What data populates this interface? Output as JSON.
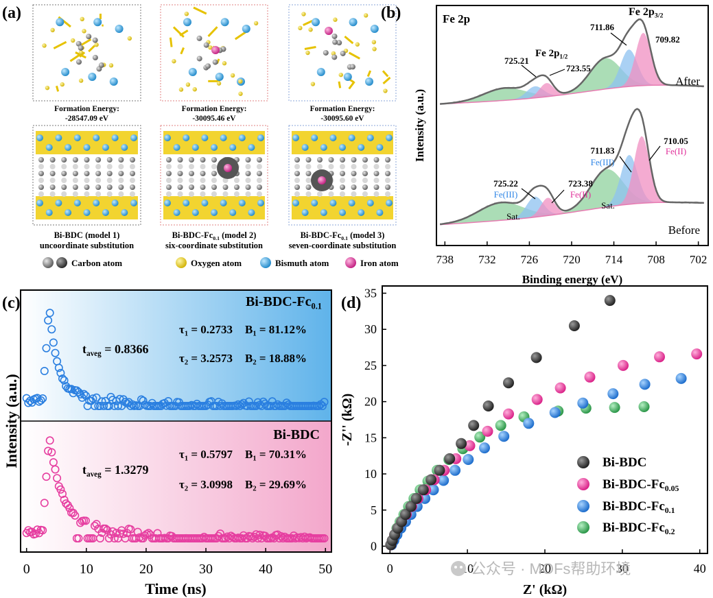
{
  "panel_a": {
    "label": "(a)",
    "models": [
      {
        "energy_title": "Formation Energy:",
        "energy_value": "-28547.09 eV",
        "name": "Bi-BDC (model 1)",
        "desc": "uncoordinate substitution",
        "frame_color": "#777777"
      },
      {
        "energy_title": "Formation Energy:",
        "energy_value": "-30095.46 eV",
        "name_main": "Bi-BDC-Fc",
        "name_sub": "0.1",
        "name_rest": " (model 2)",
        "desc": "six-coordinate substitution",
        "frame_color": "#e08080"
      },
      {
        "energy_title": "Formation Energy:",
        "energy_value": "-30095.60 eV",
        "name_main": "Bi-BDC-Fc",
        "name_sub": "0.1",
        "name_rest": " (model 3)",
        "desc": "seven-coordinate substitution",
        "frame_color": "#8aa6d8"
      }
    ],
    "legend": [
      {
        "label": "Carbon atom",
        "color": "#8a8a8a"
      },
      {
        "label": "Oxygen atom",
        "color": "#f0d21a"
      },
      {
        "label": "Bismuth atom",
        "color": "#3aa6e0"
      },
      {
        "label": "Iron atom",
        "color": "#e0309a"
      }
    ]
  },
  "panel_b": {
    "label": "(b)",
    "corner_label": "Fe 2p",
    "ylabel": "Intensity (a.u.)",
    "xlabel": "Binding energy (eV)",
    "ticks": [
      "738",
      "732",
      "726",
      "720",
      "714",
      "708",
      "702"
    ],
    "after": {
      "label": "After",
      "peaks": [
        "725.21",
        "723.55",
        "711.86",
        "709.82"
      ],
      "fe2p12_main": "Fe 2p",
      "fe2p12_sub": "1/2",
      "fe2p32_main": "Fe 2p",
      "fe2p32_sub": "3/2"
    },
    "before": {
      "label": "Before",
      "peaks": [
        "725.22",
        "723.38",
        "711.83",
        "710.05"
      ],
      "state_labels": [
        "Fe(III)",
        "Fe(II)",
        "Fe(III)",
        "Fe(II)"
      ],
      "sat_labels": [
        "Sat.",
        "Sat."
      ]
    }
  },
  "panel_c": {
    "label": "(c)",
    "ylabel": "Intensity (a.u.)",
    "xlabel": "Time (ns)",
    "top": {
      "title_main": "Bi-BDC-Fc",
      "title_sub": "0.1",
      "t_main": "t",
      "t_sub": "aveg",
      "t_value": " = 0.8366",
      "tau1": " = 0.2733",
      "tau2": " = 3.2573",
      "b1": " = 81.12%",
      "b2": " = 18.88%"
    },
    "bottom": {
      "title": "Bi-BDC",
      "t_main": "t",
      "t_sub": "aveg",
      "t_value": " = 1.3279",
      "tau1": " = 0.5797",
      "tau2": " = 3.0998",
      "b1": " = 70.31%",
      "b2": " = 29.69%"
    },
    "tau_symbol": "τ",
    "b_symbol": "B",
    "sub1": "1",
    "sub2": "2"
  },
  "panel_d": {
    "label": "(d)",
    "ylabel": "-Z'' (kΩ)",
    "xlabel": "Z' (kΩ)",
    "legend": [
      {
        "main": "Bi-BDC",
        "sub": "",
        "color": "#3a3a3a"
      },
      {
        "main": "Bi-BDC-Fc",
        "sub": "0.05",
        "color": "#f03c9a"
      },
      {
        "main": "Bi-BDC-Fc",
        "sub": "0.1",
        "color": "#2f86e6"
      },
      {
        "main": "Bi-BDC-Fc",
        "sub": "0.2",
        "color": "#3cb55a"
      }
    ]
  },
  "watermark": "公众号 · MOFs帮助环境",
  "chart_data": [
    {
      "type": "line",
      "title": "Fe 2p",
      "xlabel": "Binding energy (eV)",
      "ylabel": "Intensity (a.u.)",
      "xlim": [
        738,
        702
      ],
      "x_ticks": [
        738,
        732,
        726,
        720,
        714,
        708,
        702
      ],
      "series": [
        {
          "name": "After",
          "peak_positions": [
            725.21,
            723.55,
            711.86,
            709.82
          ]
        },
        {
          "name": "Before",
          "peak_positions": [
            725.22,
            723.38,
            711.83,
            710.05
          ]
        }
      ]
    },
    {
      "type": "scatter",
      "xlabel": "Time (ns)",
      "ylabel": "Intensity (a.u.)",
      "xlim": [
        -1,
        51
      ],
      "x_ticks": [
        0,
        10,
        20,
        30,
        40,
        50
      ],
      "series": [
        {
          "name": "Bi-BDC-Fc0.1",
          "t_aveg": 0.8366,
          "tau1": 0.2733,
          "tau2": 3.2573,
          "B1": 81.12,
          "B2": 18.88,
          "peak_x": 3.8
        },
        {
          "name": "Bi-BDC",
          "t_aveg": 1.3279,
          "tau1": 0.5797,
          "tau2": 3.0998,
          "B1": 70.31,
          "B2": 29.69,
          "peak_x": 3.8
        }
      ]
    },
    {
      "type": "scatter",
      "xlabel": "Z' (kΩ)",
      "ylabel": "-Z'' (kΩ)",
      "xlim": [
        -1,
        41
      ],
      "ylim": [
        -1,
        36
      ],
      "x_ticks": [
        0,
        10,
        20,
        30,
        40
      ],
      "y_ticks": [
        0,
        5,
        10,
        15,
        20,
        25,
        30,
        35
      ],
      "series": [
        {
          "name": "Bi-BDC",
          "x": [
            0.1,
            0.3,
            0.6,
            1.0,
            1.5,
            2.0,
            2.7,
            3.4,
            4.3,
            5.3,
            6.4,
            7.7,
            9.2,
            10.8,
            12.7,
            15.3,
            18.9,
            23.8,
            28.4
          ],
          "y": [
            0.2,
            0.8,
            1.6,
            2.5,
            3.4,
            4.4,
            5.5,
            6.6,
            7.8,
            9.2,
            10.5,
            12.1,
            14.2,
            16.7,
            19.4,
            22.6,
            26.1,
            30.5,
            34.0
          ]
        },
        {
          "name": "Bi-BDC-Fc0.05",
          "x": [
            0.1,
            0.3,
            0.6,
            1.0,
            1.5,
            2.1,
            2.8,
            3.6,
            4.6,
            5.7,
            7.0,
            8.5,
            10.3,
            12.6,
            15.3,
            19.0,
            22.0,
            25.8,
            30.1,
            34.8,
            39.6
          ],
          "y": [
            0.2,
            0.8,
            1.6,
            2.5,
            3.4,
            4.4,
            5.5,
            6.6,
            7.8,
            9.2,
            10.5,
            12.1,
            13.9,
            15.9,
            18.3,
            20.3,
            21.9,
            23.4,
            25.0,
            26.2,
            26.6
          ]
        },
        {
          "name": "Bi-BDC-Fc0.1",
          "x": [
            0.2,
            0.5,
            0.9,
            1.4,
            2.0,
            2.7,
            3.5,
            4.5,
            5.6,
            6.9,
            8.4,
            10.1,
            12.2,
            14.7,
            17.9,
            21.3,
            24.9,
            28.8,
            32.9,
            37.6
          ],
          "y": [
            0.2,
            0.8,
            1.6,
            2.5,
            3.4,
            4.4,
            5.5,
            6.6,
            7.8,
            9.1,
            10.5,
            12.0,
            13.6,
            15.2,
            17.0,
            18.5,
            19.8,
            21.1,
            22.4,
            23.2
          ]
        },
        {
          "name": "Bi-BDC-Fc0.2",
          "x": [
            0.1,
            0.3,
            0.6,
            0.9,
            1.3,
            1.8,
            2.4,
            3.1,
            3.9,
            4.9,
            6.1,
            7.6,
            9.4,
            11.6,
            14.3,
            17.3,
            21.7,
            25.3,
            29.0,
            32.8
          ],
          "y": [
            0.2,
            0.8,
            1.6,
            2.5,
            3.4,
            4.4,
            5.5,
            6.6,
            7.8,
            9.0,
            10.5,
            12.0,
            13.5,
            15.1,
            16.7,
            17.9,
            18.7,
            19.1,
            19.2,
            19.3
          ]
        }
      ]
    }
  ]
}
